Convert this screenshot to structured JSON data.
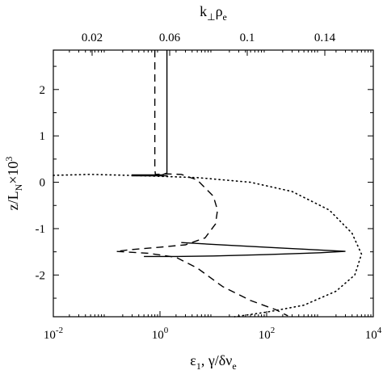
{
  "chart_data": {
    "type": "line",
    "grid": false,
    "legend": "none",
    "x_bottom": {
      "label_text": "ε",
      "label_sub": "1",
      "label_tail": ", γ/δν",
      "label_sub2": "e",
      "scale": "log",
      "range": [
        0.01,
        10000
      ],
      "ticks": [
        {
          "value": 0.01,
          "base": "10",
          "exp": "-2"
        },
        {
          "value": 1,
          "base": "10",
          "exp": "0"
        },
        {
          "value": 100,
          "base": "10",
          "exp": "2"
        },
        {
          "value": 10000,
          "base": "10",
          "exp": "4"
        }
      ]
    },
    "x_top": {
      "label_text": "k",
      "label_sub": "⊥",
      "label_mid": "ρ",
      "label_sub2": "e",
      "scale": "linear",
      "range": [
        0.0,
        0.165
      ],
      "ticks": [
        {
          "value": 0.02,
          "label": "0.02"
        },
        {
          "value": 0.06,
          "label": "0.06"
        },
        {
          "value": 0.1,
          "label": "0.1"
        },
        {
          "value": 0.14,
          "label": "0.14"
        }
      ]
    },
    "y": {
      "label_text": "z/L",
      "label_sub": "N",
      "label_tail": "×10",
      "label_sup": "3",
      "range": [
        -2.9,
        2.85
      ],
      "ticks": [
        {
          "value": 2,
          "label": "2"
        },
        {
          "value": 1,
          "label": "1"
        },
        {
          "value": 0,
          "label": "0"
        },
        {
          "value": -1,
          "label": "-1"
        },
        {
          "value": -2,
          "label": "-2"
        }
      ]
    },
    "series": [
      {
        "style": "solid",
        "x_axis": "bottom",
        "points": [
          [
            1.35,
            2.85
          ],
          [
            1.35,
            0.6
          ],
          [
            1.35,
            0.2
          ],
          [
            1.1,
            0.16
          ],
          [
            0.3,
            0.16
          ],
          [
            0.3,
            0.14
          ],
          [
            1.3,
            0.14
          ],
          [
            1.4,
            0.14
          ]
        ]
      },
      {
        "style": "solid",
        "x_axis": "bottom",
        "points": [
          [
            2.5,
            -1.3
          ],
          [
            20,
            -1.36
          ],
          [
            200,
            -1.42
          ],
          [
            1000,
            -1.46
          ],
          [
            3000,
            -1.49
          ],
          [
            1000,
            -1.52
          ],
          [
            100,
            -1.56
          ],
          [
            10,
            -1.59
          ],
          [
            2,
            -1.6
          ],
          [
            0.5,
            -1.6
          ]
        ]
      },
      {
        "style": "dashed",
        "x_axis": "bottom",
        "points": [
          [
            0.8,
            2.85
          ],
          [
            0.8,
            1.2
          ],
          [
            0.8,
            0.3
          ],
          [
            0.82,
            0.17
          ],
          [
            1.3,
            0.18
          ],
          [
            2.5,
            0.17
          ],
          [
            5,
            0.05
          ],
          [
            10,
            -0.3
          ],
          [
            12,
            -0.6
          ],
          [
            11,
            -0.9
          ],
          [
            7,
            -1.2
          ],
          [
            3,
            -1.35
          ],
          [
            1,
            -1.4
          ],
          [
            0.3,
            -1.45
          ],
          [
            0.15,
            -1.49
          ],
          [
            0.6,
            -1.53
          ],
          [
            2,
            -1.62
          ],
          [
            5,
            -1.85
          ],
          [
            15,
            -2.25
          ],
          [
            50,
            -2.55
          ],
          [
            150,
            -2.75
          ],
          [
            250,
            -2.88
          ]
        ]
      },
      {
        "style": "dotted",
        "x_axis": "bottom",
        "points": [
          [
            0.01,
            0.15
          ],
          [
            0.05,
            0.17
          ],
          [
            0.5,
            0.14
          ],
          [
            5,
            0.1
          ],
          [
            50,
            0.0
          ],
          [
            300,
            -0.2
          ],
          [
            1500,
            -0.6
          ],
          [
            4000,
            -1.1
          ],
          [
            6000,
            -1.55
          ],
          [
            4500,
            -2.0
          ],
          [
            2000,
            -2.35
          ],
          [
            500,
            -2.65
          ],
          [
            100,
            -2.8
          ],
          [
            25,
            -2.9
          ]
        ]
      }
    ]
  }
}
